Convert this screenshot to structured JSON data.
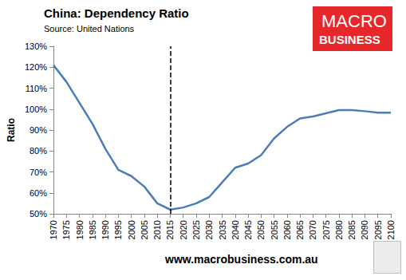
{
  "chart_data": {
    "type": "line",
    "title": "China: Dependency Ratio",
    "subtitle": "Source: United Nations",
    "y_label": "Ratio",
    "categories": [
      "1970",
      "1975",
      "1980",
      "1985",
      "1990",
      "1995",
      "2000",
      "2005",
      "2010",
      "2015",
      "2020",
      "2025",
      "2030",
      "2035",
      "2040",
      "2045",
      "2050",
      "2055",
      "2060",
      "2065",
      "2070",
      "2075",
      "2080",
      "2085",
      "2090",
      "2095",
      "2100"
    ],
    "values": [
      121,
      113,
      103,
      93,
      81,
      71,
      68,
      63,
      55,
      52,
      53,
      55,
      58,
      65,
      72,
      74,
      78,
      86,
      91.5,
      95.5,
      96.5,
      98,
      99.5,
      99.5,
      99,
      98.3,
      98.3
    ],
    "color": "#4a7ebb",
    "ylim": [
      50,
      130
    ],
    "yticks": [
      {
        "value": 50,
        "label": "50%"
      },
      {
        "value": 60,
        "label": "60%"
      },
      {
        "value": 70,
        "label": "70%"
      },
      {
        "value": 80,
        "label": "80%"
      },
      {
        "value": 90,
        "label": "90%"
      },
      {
        "value": 100,
        "label": "100%"
      },
      {
        "value": 110,
        "label": "110%"
      },
      {
        "value": 120,
        "label": "120%"
      },
      {
        "value": 130,
        "label": "130%"
      }
    ],
    "grid": false,
    "reference_lines": [
      {
        "x": "2015",
        "line_style": "dashed",
        "color": "#000000"
      }
    ],
    "logo": {
      "text": [
        "MACRO",
        "BUSINESS"
      ],
      "color": "#e8272a"
    },
    "footer": "www.macrobusiness.com.au"
  }
}
